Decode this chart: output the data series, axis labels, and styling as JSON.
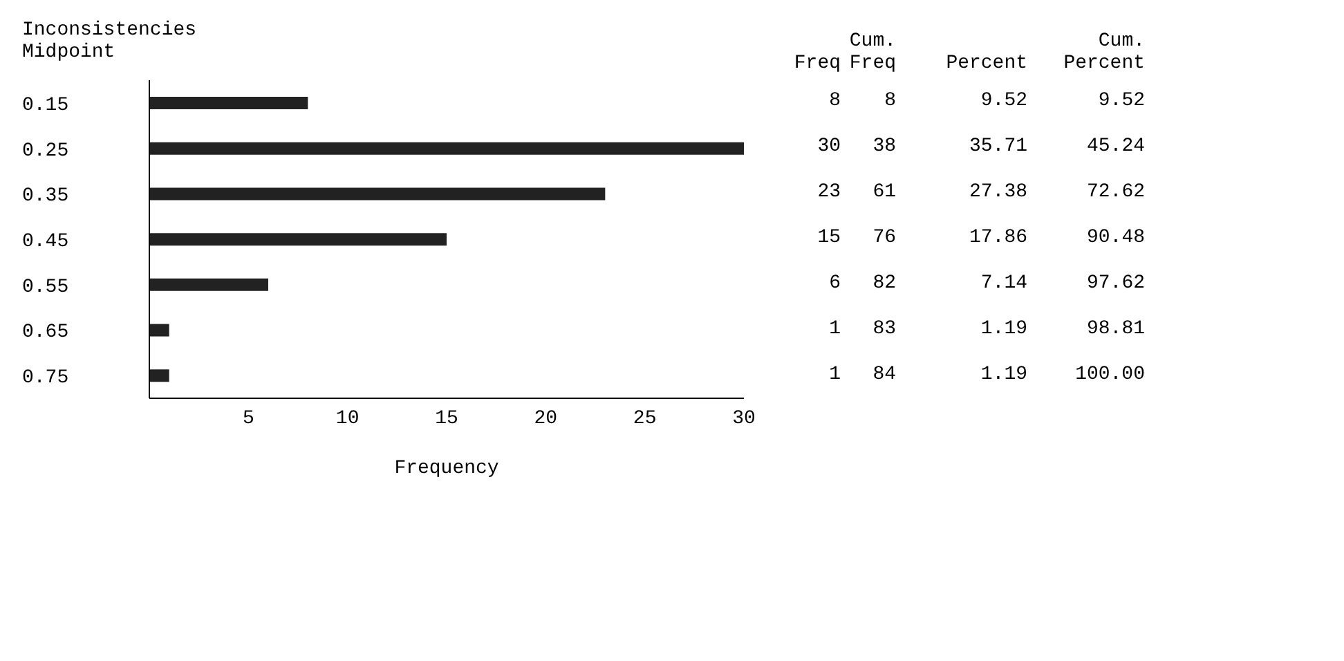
{
  "chart_data": {
    "type": "bar",
    "orientation": "horizontal",
    "ylabel": "Inconsistencies Midpoint",
    "xlabel": "Frequency",
    "categories": [
      "0.15",
      "0.25",
      "0.35",
      "0.45",
      "0.55",
      "0.65",
      "0.75"
    ],
    "values": [
      8,
      30,
      23,
      15,
      6,
      1,
      1
    ],
    "color": "#222222",
    "xlim": [
      0,
      30
    ],
    "xticks": [
      5,
      10,
      15,
      20,
      25,
      30
    ],
    "grid": false,
    "data_labels": true,
    "annotations": [
      "Freq",
      "Cum. Freq",
      "Percent",
      "Cum. Percent",
      "8",
      "9.52",
      "9.52",
      "38",
      "35.71",
      "45.24",
      "61",
      "27.38",
      "72.62",
      "76",
      "17.86",
      "90.48",
      "82",
      "7.14",
      "97.62",
      "83",
      "1.19",
      "98.81",
      "84",
      "1.19",
      "100.00"
    ]
  }
}
